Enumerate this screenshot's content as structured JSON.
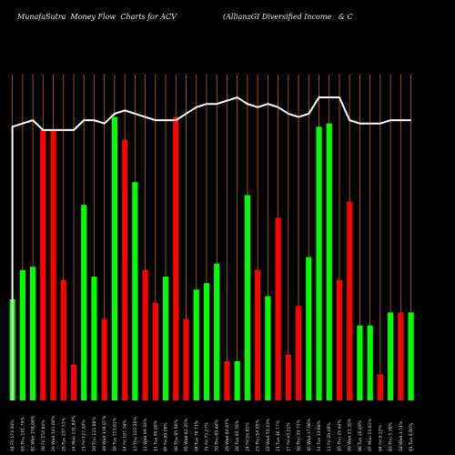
{
  "header": {
    "left": "MunafaSutra  Money Flow  Charts for ACV",
    "right": "(AllianzGI Diversified Income   & C"
  },
  "colors": {
    "up": "#00ff00",
    "down": "#ff0000",
    "grid": "#b5651d",
    "line": "#ffffff",
    "background": "#000000"
  },
  "chart_data": {
    "type": "bar",
    "title": "MunafaSutra  Money Flow  Charts for ACV",
    "subtitle": "(AllianzGI Diversified Income   & C",
    "ylim": [
      0,
      100
    ],
    "grid": true,
    "categories": [
      "04 Fri 172.00%",
      "03 Thu 161.79%",
      "02 Wed 158.68%",
      "28 Fri 152.84%",
      "26 Wed 141.68%",
      "25 Tue 137.51%",
      "24 Mon 131.84%",
      "21 Fri 127.54%",
      "20 Thu 122.88%",
      "19 Wed 118.07%",
      "18 Tue 113.81%",
      "14 Fri 107.74%",
      "13 Thu 103.26%",
      "12 Wed 99.34%",
      "11 Tue 96.06%",
      "07 Fri 89.08%",
      "06 Thu 85.96%",
      "05 Wed 82.25%",
      "04 Tue 78.71%",
      "31 Fri 73.27%",
      "30 Thu 69.46%",
      "29 Wed 64.87%",
      "28 Tue 60.76%",
      "24 Fri 56.81%",
      "23 Thu 54.65%",
      "22 Wed 50.43%",
      "21 Tue 46.77%",
      "17 Fri 43.21%",
      "16 Thu 39.75%",
      "15 Wed 37.06%",
      "14 Tue 33.88%",
      "11 Fri 29.48%",
      "10 Thu 25.64%",
      "09 Wed 21.35%",
      "08 Tue 16.69%",
      "07 Mon 13.81%",
      "04 Fri 9.12%",
      "03 Thu 5.38%",
      "02 Wed 1.51%",
      "01 Tue 0.00%"
    ],
    "series": [
      {
        "values": [
          31,
          40,
          41,
          83,
          83,
          37,
          11,
          60,
          38,
          25,
          87,
          80,
          67,
          40,
          30,
          38,
          87,
          25,
          34,
          36,
          42,
          12,
          12,
          63,
          40,
          32,
          56,
          14,
          29,
          44,
          84,
          85,
          37,
          61,
          23,
          23,
          8,
          27,
          27,
          27
        ],
        "direction": [
          "up",
          "up",
          "up",
          "down",
          "down",
          "down",
          "down",
          "up",
          "up",
          "down",
          "up",
          "down",
          "up",
          "down",
          "down",
          "up",
          "down",
          "down",
          "up",
          "up",
          "up",
          "down",
          "up",
          "up",
          "down",
          "up",
          "down",
          "down",
          "down",
          "up",
          "up",
          "up",
          "down",
          "down",
          "up",
          "up",
          "down",
          "up",
          "down",
          "up"
        ]
      },
      {
        "values": [
          84,
          85,
          86,
          83,
          83,
          83,
          83,
          86,
          86,
          85,
          88,
          89,
          88,
          87,
          86,
          86,
          86,
          88,
          90,
          91,
          91,
          92,
          93,
          91,
          90,
          91,
          90,
          88,
          87,
          88,
          93,
          93,
          93,
          86,
          85,
          85,
          85,
          86,
          86,
          86
        ]
      }
    ]
  }
}
